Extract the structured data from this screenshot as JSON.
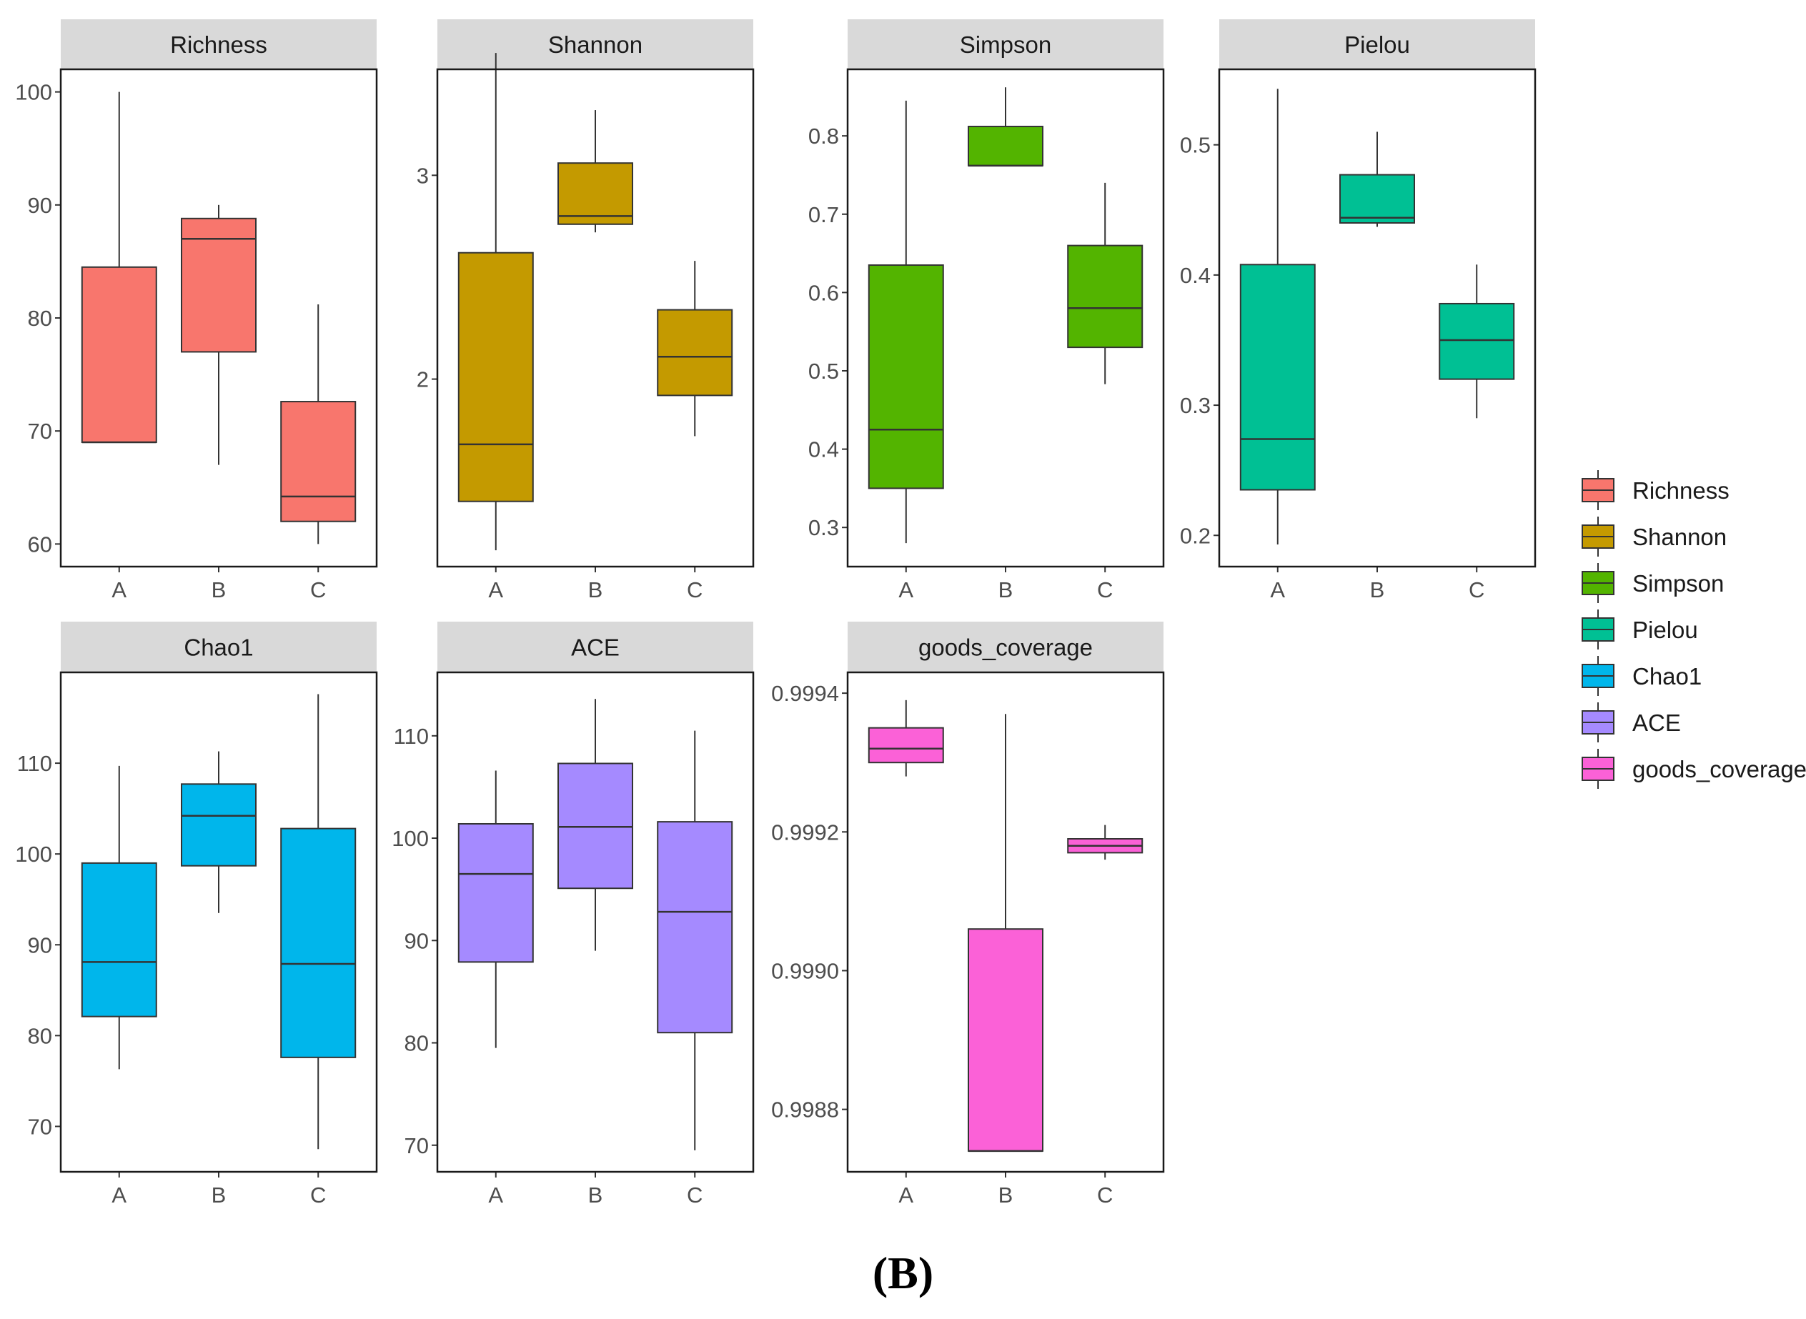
{
  "figure_label": "(B)",
  "categories": [
    "A",
    "B",
    "C"
  ],
  "legend": {
    "title": "",
    "items": [
      {
        "label": "Richness",
        "color": "#F8766D"
      },
      {
        "label": "Shannon",
        "color": "#C49A00"
      },
      {
        "label": "Simpson",
        "color": "#53B400"
      },
      {
        "label": "Pielou",
        "color": "#00C094"
      },
      {
        "label": "Chao1",
        "color": "#00B6EB"
      },
      {
        "label": "ACE",
        "color": "#A58AFF"
      },
      {
        "label": "goods_coverage",
        "color": "#FB61D7"
      }
    ]
  },
  "chart_data": [
    {
      "type": "boxplot",
      "title": "Richness",
      "color": "#F8766D",
      "categories": [
        "A",
        "B",
        "C"
      ],
      "ylim": [
        58,
        102
      ],
      "yticks": [
        60,
        70,
        80,
        90,
        100
      ],
      "ytick_labels": [
        "60",
        "70",
        "80",
        "90",
        "100"
      ],
      "boxes": [
        {
          "category": "A",
          "whisker_low": 69,
          "q1": 69,
          "median": 69,
          "q3": 84.5,
          "whisker_high": 100
        },
        {
          "category": "B",
          "whisker_low": 67,
          "q1": 77,
          "median": 87,
          "q3": 88.8,
          "whisker_high": 90
        },
        {
          "category": "C",
          "whisker_low": 60,
          "q1": 62,
          "median": 64.2,
          "q3": 72.6,
          "whisker_high": 81.2
        }
      ]
    },
    {
      "type": "boxplot",
      "title": "Shannon",
      "color": "#C49A00",
      "categories": [
        "A",
        "B",
        "C"
      ],
      "ylim": [
        1.08,
        3.52
      ],
      "yticks": [
        2,
        3
      ],
      "ytick_labels": [
        "2",
        "3"
      ],
      "boxes": [
        {
          "category": "A",
          "whisker_low": 1.16,
          "q1": 1.4,
          "median": 1.68,
          "q3": 2.62,
          "whisker_high": 3.6
        },
        {
          "category": "B",
          "whisker_low": 2.72,
          "q1": 2.76,
          "median": 2.8,
          "q3": 3.06,
          "whisker_high": 3.32
        },
        {
          "category": "C",
          "whisker_low": 1.72,
          "q1": 1.92,
          "median": 2.11,
          "q3": 2.34,
          "whisker_high": 2.58
        }
      ]
    },
    {
      "type": "boxplot",
      "title": "Simpson",
      "color": "#53B400",
      "categories": [
        "A",
        "B",
        "C"
      ],
      "ylim": [
        0.25,
        0.885
      ],
      "yticks": [
        0.3,
        0.4,
        0.5,
        0.6,
        0.7,
        0.8
      ],
      "ytick_labels": [
        "0.3",
        "0.4",
        "0.5",
        "0.6",
        "0.7",
        "0.8"
      ],
      "boxes": [
        {
          "category": "A",
          "whisker_low": 0.28,
          "q1": 0.35,
          "median": 0.425,
          "q3": 0.635,
          "whisker_high": 0.845
        },
        {
          "category": "B",
          "whisker_low": 0.762,
          "q1": 0.762,
          "median": 0.762,
          "q3": 0.812,
          "whisker_high": 0.862
        },
        {
          "category": "C",
          "whisker_low": 0.483,
          "q1": 0.53,
          "median": 0.58,
          "q3": 0.66,
          "whisker_high": 0.74
        }
      ]
    },
    {
      "type": "boxplot",
      "title": "Pielou",
      "color": "#00C094",
      "categories": [
        "A",
        "B",
        "C"
      ],
      "ylim": [
        0.176,
        0.558
      ],
      "yticks": [
        0.2,
        0.3,
        0.4,
        0.5
      ],
      "ytick_labels": [
        "0.2",
        "0.3",
        "0.4",
        "0.5"
      ],
      "boxes": [
        {
          "category": "A",
          "whisker_low": 0.193,
          "q1": 0.235,
          "median": 0.274,
          "q3": 0.408,
          "whisker_high": 0.543
        },
        {
          "category": "B",
          "whisker_low": 0.437,
          "q1": 0.44,
          "median": 0.444,
          "q3": 0.477,
          "whisker_high": 0.51
        },
        {
          "category": "C",
          "whisker_low": 0.29,
          "q1": 0.32,
          "median": 0.35,
          "q3": 0.378,
          "whisker_high": 0.408
        }
      ]
    },
    {
      "type": "boxplot",
      "title": "Chao1",
      "color": "#00B6EB",
      "categories": [
        "A",
        "B",
        "C"
      ],
      "ylim": [
        65,
        120
      ],
      "yticks": [
        70,
        80,
        90,
        100,
        110
      ],
      "ytick_labels": [
        "70",
        "80",
        "90",
        "100",
        "110"
      ],
      "boxes": [
        {
          "category": "A",
          "whisker_low": 76.3,
          "q1": 82.1,
          "median": 88.1,
          "q3": 99,
          "whisker_high": 109.7
        },
        {
          "category": "B",
          "whisker_low": 93.5,
          "q1": 98.7,
          "median": 104.2,
          "q3": 107.7,
          "whisker_high": 111.3
        },
        {
          "category": "C",
          "whisker_low": 67.5,
          "q1": 77.6,
          "median": 87.9,
          "q3": 102.8,
          "whisker_high": 117.6
        }
      ]
    },
    {
      "type": "boxplot",
      "title": "ACE",
      "color": "#A58AFF",
      "categories": [
        "A",
        "B",
        "C"
      ],
      "ylim": [
        67.4,
        116.2
      ],
      "yticks": [
        70,
        80,
        90,
        100,
        110
      ],
      "ytick_labels": [
        "70",
        "80",
        "90",
        "100",
        "110"
      ],
      "boxes": [
        {
          "category": "A",
          "whisker_low": 79.5,
          "q1": 87.9,
          "median": 96.5,
          "q3": 101.4,
          "whisker_high": 106.6
        },
        {
          "category": "B",
          "whisker_low": 89,
          "q1": 95.1,
          "median": 101.1,
          "q3": 107.3,
          "whisker_high": 113.6
        },
        {
          "category": "C",
          "whisker_low": 69.5,
          "q1": 81,
          "median": 92.8,
          "q3": 101.6,
          "whisker_high": 110.5
        }
      ]
    },
    {
      "type": "boxplot",
      "title": "goods_coverage",
      "color": "#FB61D7",
      "categories": [
        "A",
        "B",
        "C"
      ],
      "ylim": [
        0.99871,
        0.99943
      ],
      "yticks": [
        0.9988,
        0.999,
        0.9992,
        0.9994
      ],
      "ytick_labels": [
        "0.9988",
        "0.9990",
        "0.9992",
        "0.9994"
      ],
      "boxes": [
        {
          "category": "A",
          "whisker_low": 0.99928,
          "q1": 0.9993,
          "median": 0.99932,
          "q3": 0.99935,
          "whisker_high": 0.99939
        },
        {
          "category": "B",
          "whisker_low": 0.99874,
          "q1": 0.99874,
          "median": 0.99874,
          "q3": 0.99906,
          "whisker_high": 0.99937
        },
        {
          "category": "C",
          "whisker_low": 0.99916,
          "q1": 0.99917,
          "median": 0.99918,
          "q3": 0.99919,
          "whisker_high": 0.99921
        }
      ]
    }
  ]
}
